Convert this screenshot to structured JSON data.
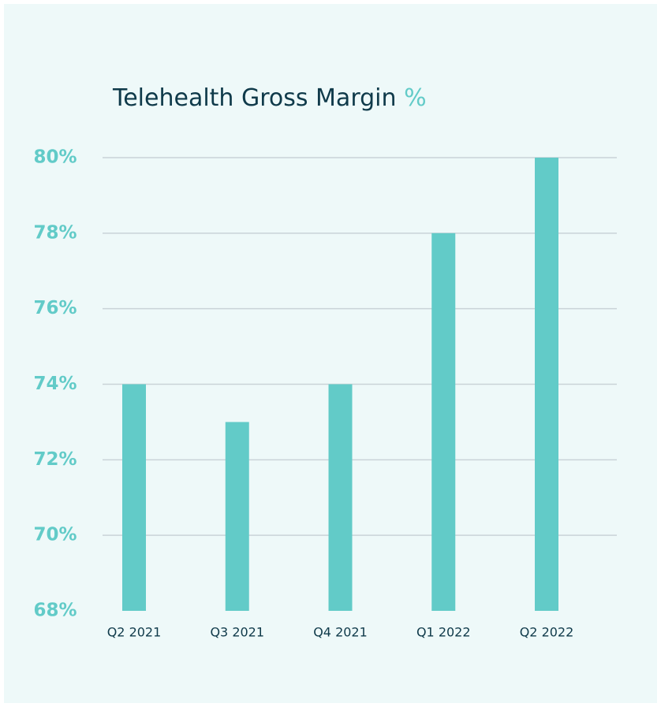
{
  "chart_data": {
    "type": "bar",
    "title": "Telehealth Gross Margin",
    "title_unit": "%",
    "categories": [
      "Q2 2021",
      "Q3 2021",
      "Q4 2021",
      "Q1 2022",
      "Q2 2022"
    ],
    "values": [
      74,
      73,
      74,
      78,
      80
    ],
    "color": "#62cbc8",
    "ylim": [
      68,
      80
    ],
    "yticks": [
      {
        "value": 68,
        "label": "68%"
      },
      {
        "value": 70,
        "label": "70%"
      },
      {
        "value": 72,
        "label": "72%"
      },
      {
        "value": 74,
        "label": "74%"
      },
      {
        "value": 76,
        "label": "76%"
      },
      {
        "value": 78,
        "label": "78%"
      },
      {
        "value": 80,
        "label": "80%"
      }
    ],
    "grid": true
  }
}
